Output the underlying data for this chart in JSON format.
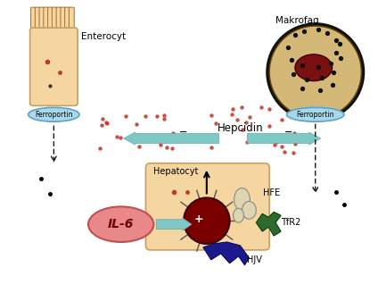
{
  "bg_color": "#ffffff",
  "enterocyt_label": "Enterocyt",
  "ferroportin_label": "Ferroportin",
  "makrofag_label": "Makrofag",
  "hepatocyt_label": "Hepatocyt",
  "hepcidin_label": "Hepcidin",
  "il6_label": "IL-6",
  "hfe_label": "HFE",
  "tfr2_label": "TfR2",
  "hjv_label": "HJV",
  "arrow_color": "#7ec8c8",
  "arrow_edge": "#5aacac",
  "dot_color": "#c0392b",
  "cell_fill": "#f5d5a0",
  "cell_border": "#c8a060",
  "ferroportin_fill": "#a8d8ea",
  "ferroportin_border": "#5ba3c9",
  "il6_fill": "#e88888",
  "il6_border": "#c05050",
  "makrofag_fill": "#d4b878",
  "makrofag_border": "#1a0a00",
  "dark_red": "#8b1a1a",
  "dark_green": "#2d6a2d",
  "dark_blue": "#1a1a8e",
  "hfe_fill": "#d8cca0",
  "nucleus_fill": "#7a0000"
}
